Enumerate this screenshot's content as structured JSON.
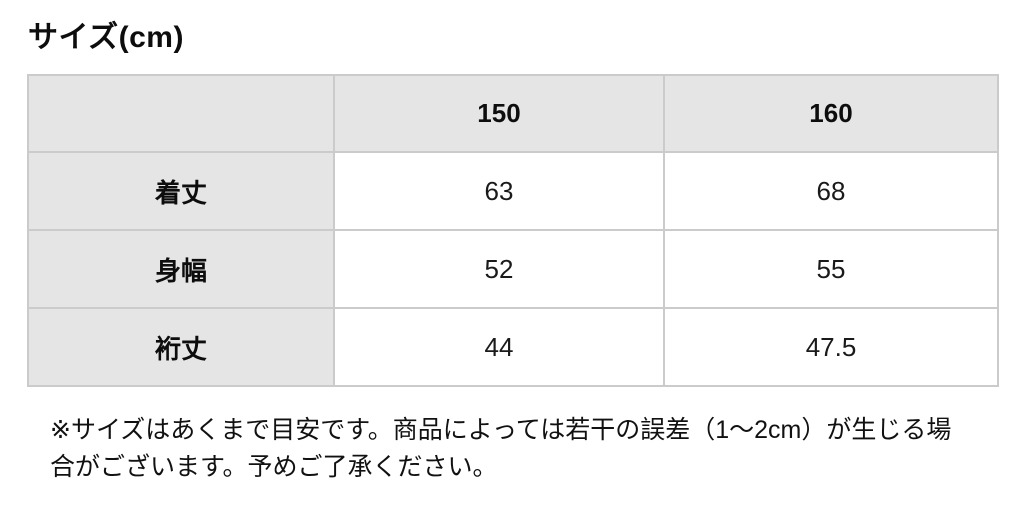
{
  "title": "サイズ(cm)",
  "table": {
    "columns": [
      "",
      "150",
      "160"
    ],
    "rows": [
      {
        "label": "着丈",
        "values": [
          "63",
          "68"
        ]
      },
      {
        "label": "身幅",
        "values": [
          "52",
          "55"
        ]
      },
      {
        "label": "裄丈",
        "values": [
          "44",
          "47.5"
        ]
      }
    ]
  },
  "note": "※サイズはあくまで目安です。商品によっては若干の誤差（1〜2cm）が生じる場合がございます。予めご了承ください。",
  "colors": {
    "header_cell_bg": "#e5e5e5",
    "value_cell_bg": "#ffffff",
    "table_border": "#cbcbcb",
    "text": "#111111"
  }
}
